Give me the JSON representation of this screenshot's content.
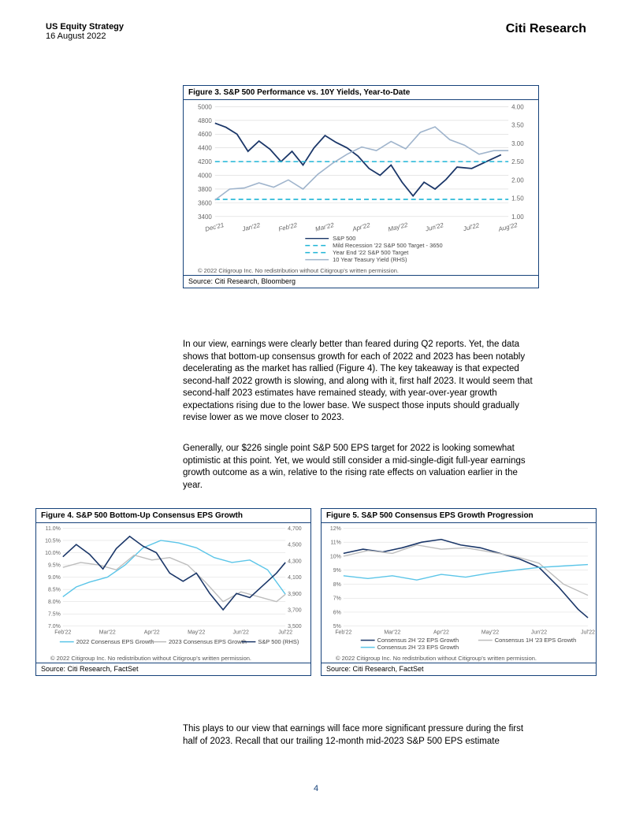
{
  "header": {
    "title": "US Equity Strategy",
    "date": "16 August 2022",
    "brand": "Citi Research"
  },
  "fig3": {
    "title": "Figure 3. S&P 500 Performance vs. 10Y Yields, Year-to-Date",
    "type": "line",
    "x_labels": [
      "Dec'21",
      "Jan'22",
      "Feb'22",
      "Mar'22",
      "Apr'22",
      "May'22",
      "Jun'22",
      "Jul'22",
      "Aug'22"
    ],
    "y_left": {
      "min": 3400,
      "max": 5000,
      "step": 200,
      "ticks": [
        3400,
        3600,
        3800,
        4000,
        4200,
        4400,
        4600,
        4800,
        5000
      ]
    },
    "y_right": {
      "min": 1.0,
      "max": 4.0,
      "step": 0.5,
      "ticks": [
        1.0,
        1.5,
        2.0,
        2.5,
        3.0,
        3.5,
        4.0
      ]
    },
    "series": [
      {
        "name": "S&P 500",
        "color": "#1a3668",
        "width": 1.8,
        "dash": "none",
        "axis": "left",
        "points": [
          [
            0,
            4760
          ],
          [
            0.3,
            4700
          ],
          [
            0.6,
            4600
          ],
          [
            0.9,
            4350
          ],
          [
            1.2,
            4500
          ],
          [
            1.5,
            4380
          ],
          [
            1.8,
            4200
          ],
          [
            2.1,
            4350
          ],
          [
            2.4,
            4150
          ],
          [
            2.7,
            4400
          ],
          [
            3.0,
            4580
          ],
          [
            3.3,
            4480
          ],
          [
            3.6,
            4400
          ],
          [
            3.9,
            4280
          ],
          [
            4.2,
            4100
          ],
          [
            4.5,
            4000
          ],
          [
            4.8,
            4150
          ],
          [
            5.1,
            3900
          ],
          [
            5.4,
            3700
          ],
          [
            5.7,
            3900
          ],
          [
            6.0,
            3800
          ],
          [
            6.3,
            3940
          ],
          [
            6.6,
            4120
          ],
          [
            7.0,
            4100
          ],
          [
            7.4,
            4200
          ],
          [
            7.8,
            4300
          ]
        ]
      },
      {
        "name": "Mild Recession '22 S&P 500 Target - 3650",
        "color": "#1fb5d6",
        "width": 1.6,
        "dash": "6 4",
        "axis": "left",
        "points": [
          [
            0,
            3650
          ],
          [
            8,
            3650
          ]
        ]
      },
      {
        "name": "Year End '22 S&P 500 Target",
        "color": "#1fb5d6",
        "width": 1.6,
        "dash": "6 4",
        "axis": "left",
        "points": [
          [
            0,
            4200
          ],
          [
            8,
            4200
          ]
        ]
      },
      {
        "name": "10 Year Teasury Yield (RHS)",
        "color": "#9fb4cc",
        "width": 1.6,
        "dash": "none",
        "axis": "right",
        "points": [
          [
            0,
            1.45
          ],
          [
            0.4,
            1.75
          ],
          [
            0.8,
            1.78
          ],
          [
            1.2,
            1.92
          ],
          [
            1.6,
            1.8
          ],
          [
            2.0,
            2.0
          ],
          [
            2.4,
            1.75
          ],
          [
            2.8,
            2.15
          ],
          [
            3.2,
            2.45
          ],
          [
            3.6,
            2.7
          ],
          [
            4.0,
            2.9
          ],
          [
            4.4,
            2.8
          ],
          [
            4.8,
            3.05
          ],
          [
            5.2,
            2.85
          ],
          [
            5.6,
            3.3
          ],
          [
            6.0,
            3.45
          ],
          [
            6.4,
            3.1
          ],
          [
            6.8,
            2.95
          ],
          [
            7.2,
            2.7
          ],
          [
            7.6,
            2.8
          ],
          [
            8.0,
            2.8
          ]
        ]
      }
    ],
    "legend": [
      "S&P 500",
      "Mild Recession '22 S&P 500 Target - 3650",
      "Year End '22 S&P 500 Target",
      "10 Year Teasury Yield (RHS)"
    ],
    "copyright": "© 2022 Citigroup Inc. No redistribution without Citigroup's written permission.",
    "source": "Source: Citi Research, Bloomberg",
    "background_color": "#ffffff",
    "grid_color": "#d8d8d8"
  },
  "paragraph1": "In our view, earnings were clearly better than feared during Q2 reports. Yet, the data shows that bottom-up consensus growth for each of 2022 and 2023 has been notably decelerating as the market has rallied (Figure 4). The key takeaway is that expected second-half 2022 growth is slowing, and along with it, first half 2023. It would seem that second-half 2023 estimates have remained steady, with year-over-year growth expectations rising due to the lower base. We suspect those inputs should gradually revise lower as we move closer to 2023.",
  "paragraph2": "Generally, our $226 single point S&P 500 EPS target for 2022 is looking somewhat optimistic at this point. Yet, we would still consider a mid-single-digit full-year earnings growth outcome as a win, relative to the rising rate effects on valuation earlier in the year.",
  "fig4": {
    "title": "Figure 4. S&P 500 Bottom-Up Consensus EPS Growth",
    "type": "line",
    "x_labels": [
      "Feb'22",
      "Mar'22",
      "Apr'22",
      "May'22",
      "Jun'22",
      "Jul'22"
    ],
    "y_left": {
      "min": 7.0,
      "max": 11.0,
      "step": 0.5,
      "ticks": [
        "7.0%",
        "7.5%",
        "8.0%",
        "8.5%",
        "9.0%",
        "9.5%",
        "10.0%",
        "10.5%",
        "11.0%"
      ]
    },
    "y_right": {
      "min": 3500,
      "max": 4700,
      "step": 200,
      "ticks": [
        3500,
        3700,
        3900,
        4100,
        4300,
        4500,
        4700
      ]
    },
    "series": [
      {
        "name": "2022 Consensus EPS Growth",
        "color": "#5bc5e8",
        "width": 1.4,
        "axis": "left",
        "points": [
          [
            0,
            8.2
          ],
          [
            0.3,
            8.6
          ],
          [
            0.6,
            8.8
          ],
          [
            1.0,
            9.0
          ],
          [
            1.4,
            9.5
          ],
          [
            1.8,
            10.2
          ],
          [
            2.2,
            10.5
          ],
          [
            2.6,
            10.4
          ],
          [
            3.0,
            10.2
          ],
          [
            3.4,
            9.8
          ],
          [
            3.8,
            9.6
          ],
          [
            4.2,
            9.7
          ],
          [
            4.6,
            9.3
          ],
          [
            5.0,
            8.3
          ]
        ]
      },
      {
        "name": "2023 Consensus EPS Growth",
        "color": "#bdbdbd",
        "width": 1.4,
        "axis": "left",
        "points": [
          [
            0,
            9.4
          ],
          [
            0.4,
            9.6
          ],
          [
            0.8,
            9.5
          ],
          [
            1.2,
            9.3
          ],
          [
            1.6,
            9.9
          ],
          [
            2.0,
            9.7
          ],
          [
            2.4,
            9.8
          ],
          [
            2.8,
            9.5
          ],
          [
            3.2,
            8.8
          ],
          [
            3.6,
            8.0
          ],
          [
            4.0,
            8.4
          ],
          [
            4.4,
            8.2
          ],
          [
            4.8,
            8.0
          ],
          [
            5.0,
            8.3
          ]
        ]
      },
      {
        "name": "S&P 500 (RHS)",
        "color": "#1a3668",
        "width": 1.6,
        "axis": "right",
        "points": [
          [
            0,
            4350
          ],
          [
            0.3,
            4500
          ],
          [
            0.6,
            4380
          ],
          [
            0.9,
            4200
          ],
          [
            1.2,
            4450
          ],
          [
            1.5,
            4600
          ],
          [
            1.8,
            4480
          ],
          [
            2.1,
            4400
          ],
          [
            2.4,
            4150
          ],
          [
            2.7,
            4050
          ],
          [
            3.0,
            4150
          ],
          [
            3.3,
            3900
          ],
          [
            3.6,
            3700
          ],
          [
            3.9,
            3900
          ],
          [
            4.2,
            3850
          ],
          [
            4.5,
            4000
          ],
          [
            4.8,
            4150
          ],
          [
            5.0,
            4280
          ]
        ]
      }
    ],
    "legend": [
      "2022 Consensus EPS Growth",
      "2023 Consensus EPS Growth",
      "S&P 500 (RHS)"
    ],
    "copyright": "© 2022 Citigroup Inc. No redistribution without Citigroup's written permission.",
    "source": "Source: Citi Research, FactSet",
    "grid_color": "#d8d8d8"
  },
  "fig5": {
    "title": "Figure 5. S&P 500 Consensus EPS Growth Progression",
    "type": "line",
    "x_labels": [
      "Feb'22",
      "Mar'22",
      "Apr'22",
      "May'22",
      "Jun'22",
      "Jul'22"
    ],
    "y_left": {
      "min": 5,
      "max": 12,
      "step": 1,
      "ticks": [
        "5%",
        "6%",
        "7%",
        "8%",
        "9%",
        "10%",
        "11%",
        "12%"
      ]
    },
    "series": [
      {
        "name": "Consensus 2H '22 EPS Growth",
        "color": "#1a3668",
        "width": 1.6,
        "points": [
          [
            0,
            10.2
          ],
          [
            0.4,
            10.5
          ],
          [
            0.8,
            10.3
          ],
          [
            1.2,
            10.6
          ],
          [
            1.6,
            11.0
          ],
          [
            2.0,
            11.2
          ],
          [
            2.4,
            10.8
          ],
          [
            2.8,
            10.6
          ],
          [
            3.2,
            10.2
          ],
          [
            3.6,
            9.8
          ],
          [
            4.0,
            9.2
          ],
          [
            4.4,
            7.8
          ],
          [
            4.8,
            6.2
          ],
          [
            5.0,
            5.6
          ]
        ]
      },
      {
        "name": "Consensus 1H '23 EPS Growth",
        "color": "#bdbdbd",
        "width": 1.4,
        "points": [
          [
            0,
            10.0
          ],
          [
            0.5,
            10.4
          ],
          [
            1.0,
            10.2
          ],
          [
            1.5,
            10.8
          ],
          [
            2.0,
            10.5
          ],
          [
            2.5,
            10.6
          ],
          [
            3.0,
            10.3
          ],
          [
            3.5,
            10.0
          ],
          [
            4.0,
            9.5
          ],
          [
            4.5,
            8.0
          ],
          [
            5.0,
            7.2
          ]
        ]
      },
      {
        "name": "Consensus 2H '23 EPS Growth",
        "color": "#5bc5e8",
        "width": 1.4,
        "points": [
          [
            0,
            8.6
          ],
          [
            0.5,
            8.4
          ],
          [
            1.0,
            8.6
          ],
          [
            1.5,
            8.3
          ],
          [
            2.0,
            8.7
          ],
          [
            2.5,
            8.5
          ],
          [
            3.0,
            8.8
          ],
          [
            3.5,
            9.0
          ],
          [
            4.0,
            9.2
          ],
          [
            4.5,
            9.3
          ],
          [
            5.0,
            9.4
          ]
        ]
      }
    ],
    "legend": [
      "Consensus 2H '22 EPS Growth",
      "Consensus 1H '23 EPS Growth",
      "Consensus 2H '23 EPS Growth"
    ],
    "copyright": "© 2022 Citigroup Inc. No redistribution without Citigroup's written permission.",
    "source": "Source: Citi Research, FactSet",
    "grid_color": "#d8d8d8"
  },
  "paragraph3": "This plays to our view that earnings will face more significant pressure during the first half of 2023. Recall that our trailing 12-month mid-2023 S&P 500 EPS estimate",
  "page_number": "4",
  "colors": {
    "brand_blue": "#16427a",
    "dark_navy": "#1a3668",
    "light_blue": "#5bc5e8",
    "cyan_dash": "#1fb5d6",
    "gray_line": "#9fb4cc",
    "light_gray": "#bdbdbd",
    "grid": "#d8d8d8",
    "text": "#000000"
  }
}
